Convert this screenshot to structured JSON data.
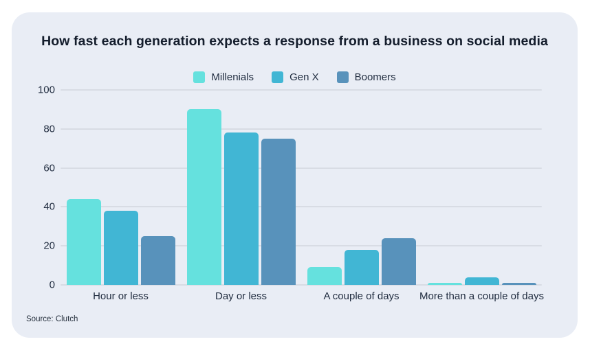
{
  "chart_data": {
    "type": "bar",
    "title": "How fast each generation expects a response from a business on social media",
    "categories": [
      "Hour or less",
      "Day or less",
      "A couple of days",
      "More than a couple of days"
    ],
    "series": [
      {
        "name": "Millenials",
        "color": "#65E1DE",
        "values": [
          44,
          90,
          9,
          1
        ]
      },
      {
        "name": "Gen X",
        "color": "#41B6D4",
        "values": [
          38,
          78,
          18,
          4
        ]
      },
      {
        "name": "Boomers",
        "color": "#5892BB",
        "values": [
          25,
          75,
          24,
          1
        ]
      }
    ],
    "ylim": [
      0,
      100
    ],
    "yticks": [
      0,
      20,
      40,
      60,
      80,
      100
    ],
    "grid": true,
    "legend_position": "top",
    "source": "Source: Clutch",
    "colors": {
      "card_background": "#E9EDF5",
      "gridline": "#D8DCE4",
      "text": "#1F2B3E",
      "title_text": "#141D2C"
    }
  }
}
